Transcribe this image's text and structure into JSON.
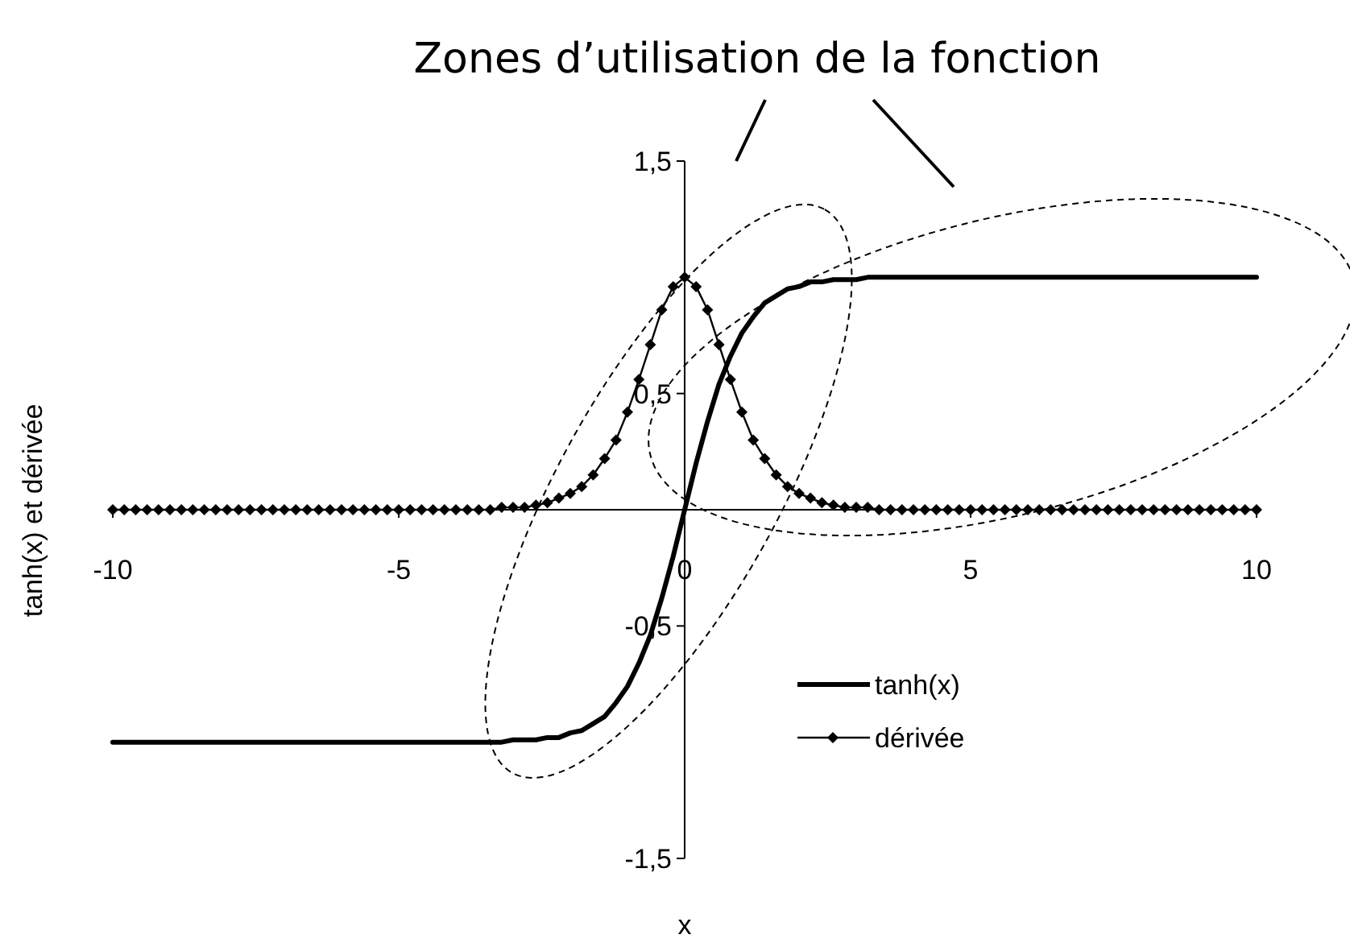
{
  "chart_data": {
    "type": "line",
    "title": "Zones d’utilisation de la fonction",
    "xlabel": "x",
    "ylabel": "tanh(x) et dérivée",
    "x": [
      -10,
      -9.8,
      -9.6,
      -9.4,
      -9.2,
      -9,
      -8.8,
      -8.6,
      -8.4,
      -8.2,
      -8,
      -7.8,
      -7.6,
      -7.4,
      -7.2,
      -7,
      -6.8,
      -6.6,
      -6.4,
      -6.2,
      -6,
      -5.8,
      -5.6,
      -5.4,
      -5.2,
      -5,
      -4.8,
      -4.6,
      -4.4,
      -4.2,
      -4,
      -3.8,
      -3.6,
      -3.4,
      -3.2,
      -3,
      -2.8,
      -2.6,
      -2.4,
      -2.2,
      -2,
      -1.8,
      -1.6,
      -1.4,
      -1.2,
      -1,
      -0.8,
      -0.6,
      -0.4,
      -0.2,
      0,
      0.2,
      0.4,
      0.6,
      0.8,
      1,
      1.2,
      1.4,
      1.6,
      1.8,
      2,
      2.2,
      2.4,
      2.6,
      2.8,
      3,
      3.2,
      3.4,
      3.6,
      3.8,
      4,
      4.2,
      4.4,
      4.6,
      4.8,
      5,
      5.2,
      5.4,
      5.6,
      5.8,
      6,
      6.2,
      6.4,
      6.6,
      6.8,
      7,
      7.2,
      7.4,
      7.6,
      7.8,
      8,
      8.2,
      8.4,
      8.6,
      8.8,
      9,
      9.2,
      9.4,
      9.6,
      9.8,
      10
    ],
    "series": [
      {
        "name": "tanh(x)",
        "color": "#000000",
        "marker": "none",
        "values": [
          -1,
          -1,
          -1,
          -1,
          -1,
          -1,
          -1,
          -1,
          -1,
          -1,
          -1,
          -1,
          -1,
          -1,
          -1,
          -1,
          -1,
          -1,
          -1,
          -1,
          -1,
          -1,
          -1,
          -1,
          -1,
          -1,
          -1,
          -1,
          -1,
          -1,
          -1,
          -1,
          -1,
          -1,
          -1,
          -0.99,
          -0.99,
          -0.99,
          -0.98,
          -0.98,
          -0.96,
          -0.95,
          -0.92,
          -0.89,
          -0.83,
          -0.76,
          -0.66,
          -0.54,
          -0.38,
          -0.2,
          0,
          0.2,
          0.38,
          0.54,
          0.66,
          0.76,
          0.83,
          0.89,
          0.92,
          0.95,
          0.96,
          0.98,
          0.98,
          0.99,
          0.99,
          0.99,
          1,
          1,
          1,
          1,
          1,
          1,
          1,
          1,
          1,
          1,
          1,
          1,
          1,
          1,
          1,
          1,
          1,
          1,
          1,
          1,
          1,
          1,
          1,
          1,
          1,
          1,
          1,
          1,
          1,
          1,
          1,
          1,
          1,
          1,
          1
        ]
      },
      {
        "name": "dérivée",
        "color": "#000000",
        "marker": "diamond",
        "values": [
          0,
          0,
          0,
          0,
          0,
          0,
          0,
          0,
          0,
          0,
          0,
          0,
          0,
          0,
          0,
          0,
          0,
          0,
          0,
          0,
          0,
          0,
          0,
          0,
          0,
          0,
          0,
          0,
          0,
          0,
          0,
          0,
          0,
          0,
          0.01,
          0.01,
          0.01,
          0.02,
          0.03,
          0.05,
          0.07,
          0.1,
          0.15,
          0.22,
          0.3,
          0.42,
          0.56,
          0.71,
          0.86,
          0.96,
          1,
          0.96,
          0.86,
          0.71,
          0.56,
          0.42,
          0.3,
          0.22,
          0.15,
          0.1,
          0.07,
          0.05,
          0.03,
          0.02,
          0.01,
          0.01,
          0.01,
          0,
          0,
          0,
          0,
          0,
          0,
          0,
          0,
          0,
          0,
          0,
          0,
          0,
          0,
          0,
          0,
          0,
          0,
          0,
          0,
          0,
          0,
          0,
          0,
          0,
          0,
          0,
          0,
          0,
          0,
          0,
          0,
          0,
          0
        ]
      }
    ],
    "xlim": [
      -10,
      10
    ],
    "xticks": [
      -10,
      -5,
      0,
      5,
      10
    ],
    "ylim": [
      -1.5,
      1.5
    ],
    "yticks": [
      {
        "value": -1.5,
        "label": "-1,5"
      },
      {
        "value": -0.5,
        "label": "-0,5"
      },
      {
        "value": 0.5,
        "label": "0,5"
      },
      {
        "value": 1.5,
        "label": "1,5"
      }
    ],
    "grid": false,
    "legend": "bottom right"
  }
}
